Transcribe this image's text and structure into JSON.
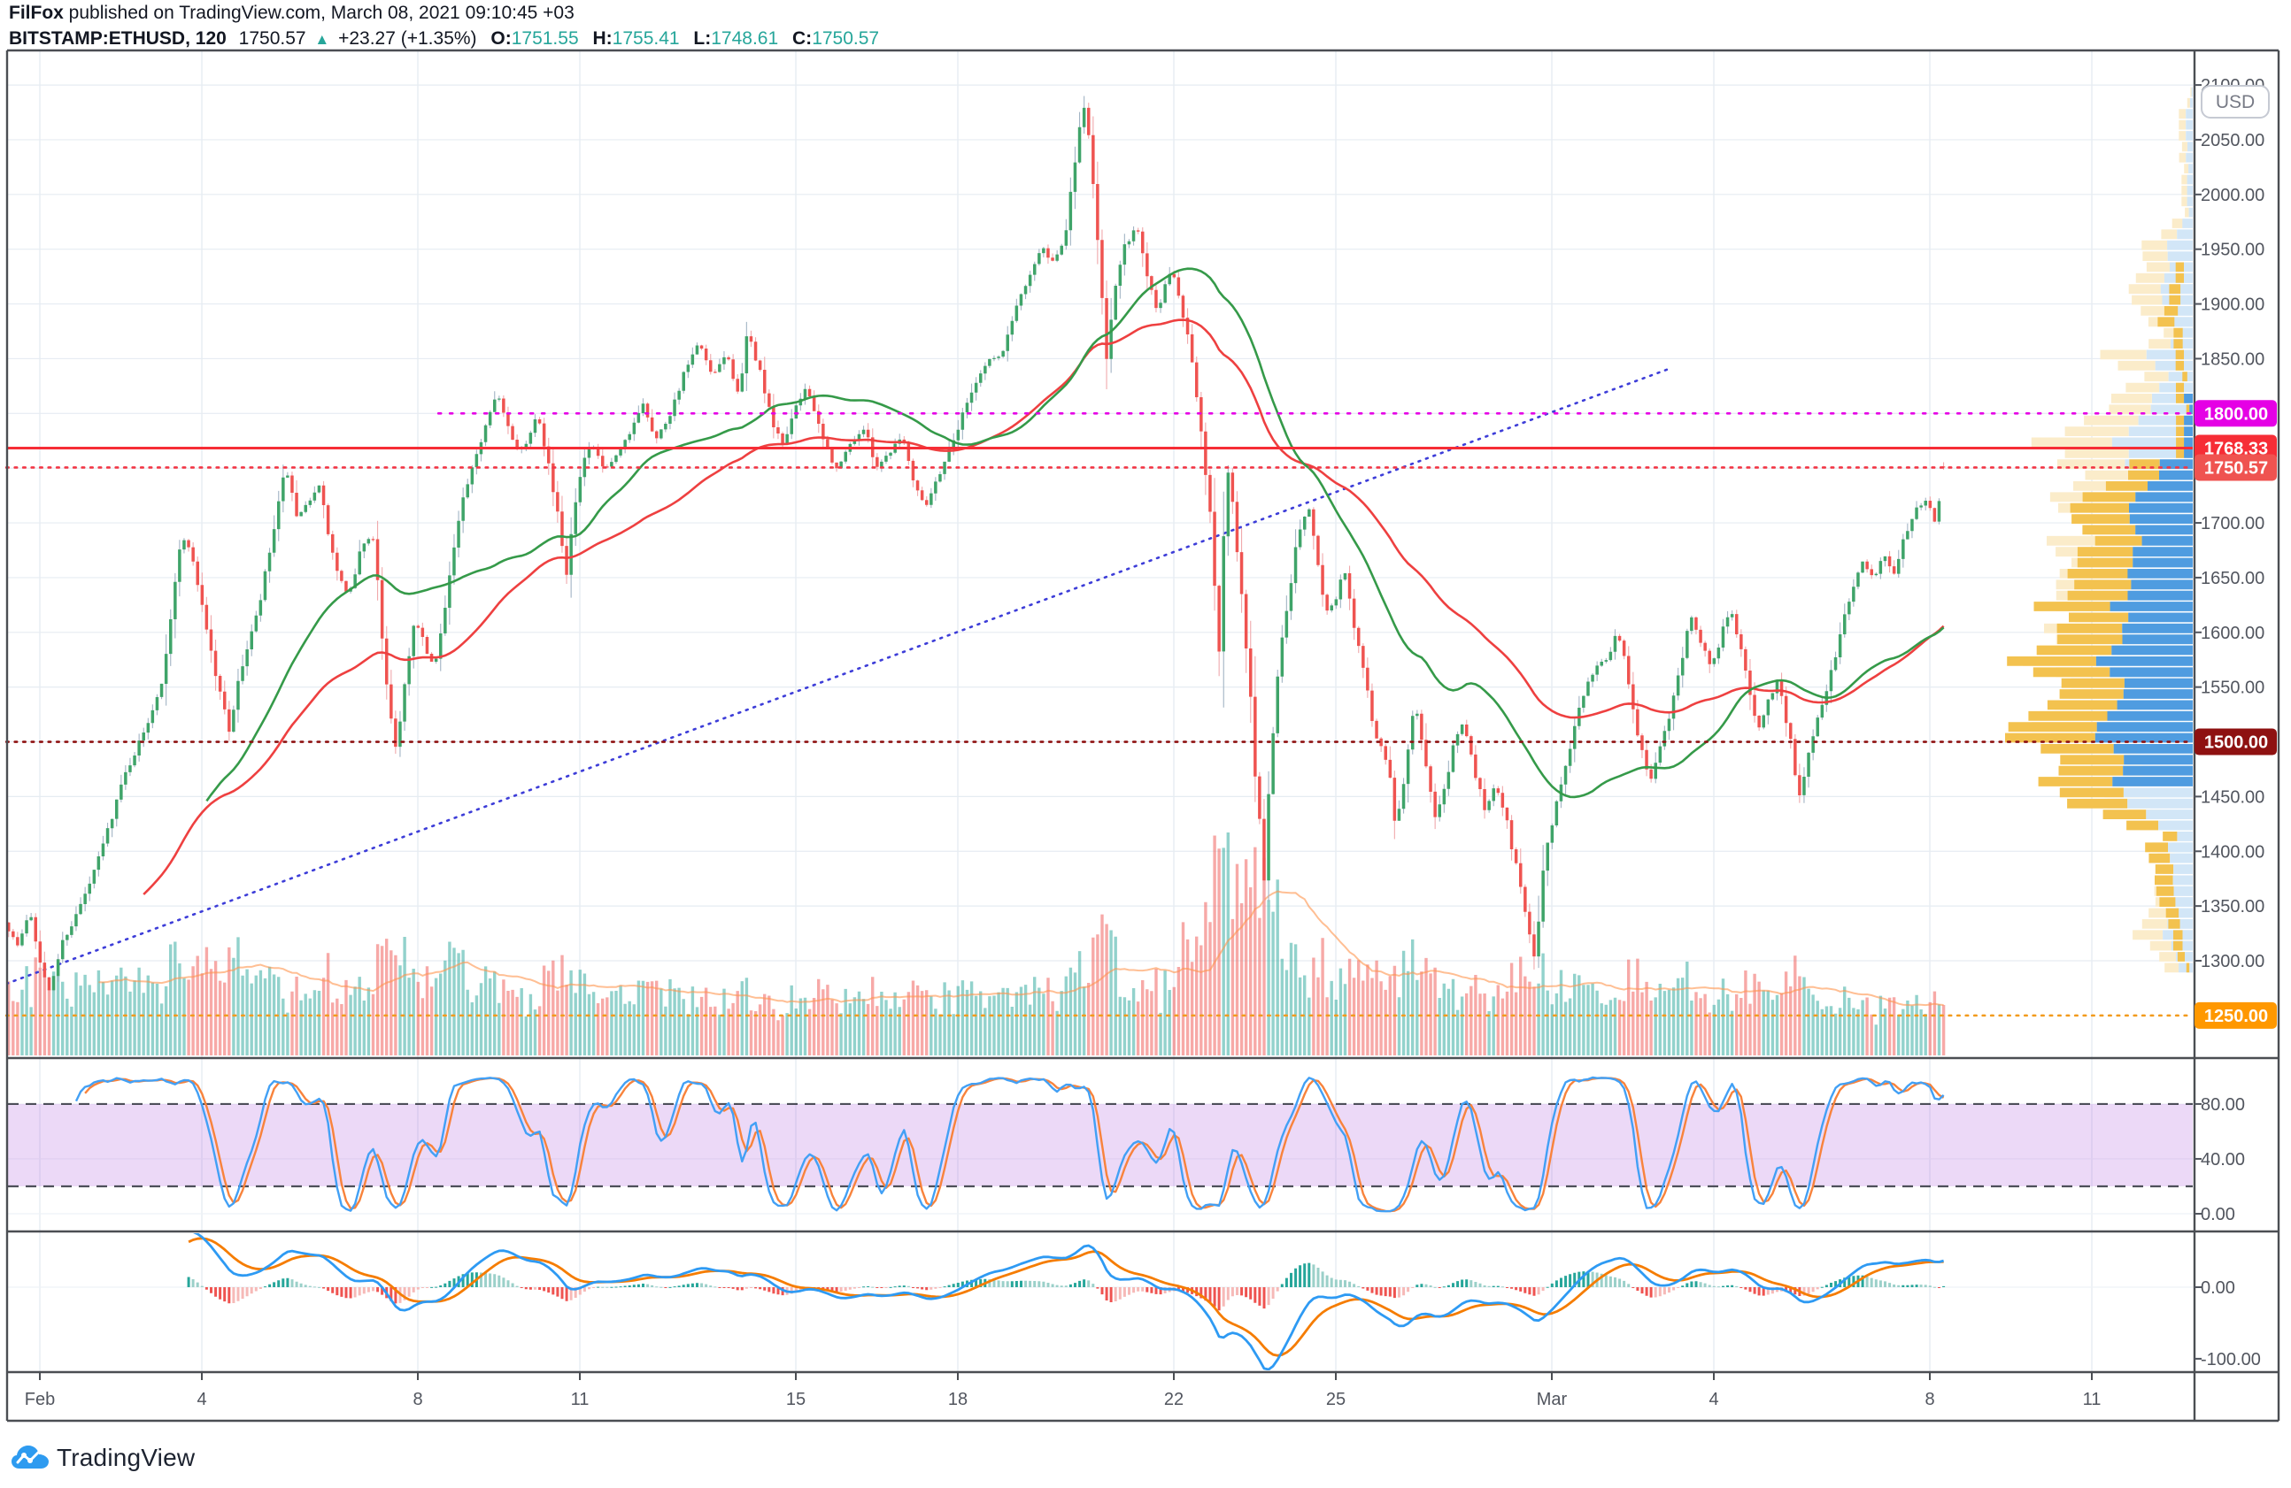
{
  "header": {
    "byline_author": "FilFox",
    "byline_rest": " published on TradingView.com, March 08, 2021 09:10:45 +03",
    "symbol": "BITSTAMP:ETHUSD, 120",
    "last_price": "1750.57",
    "change_icon": "▲",
    "change": "+23.27 (+1.35%)",
    "o_label": "O:",
    "o_value": "1751.55",
    "h_label": "H:",
    "h_value": "1755.41",
    "l_label": "L:",
    "l_value": "1748.61",
    "c_label": "C:",
    "c_value": "1750.57"
  },
  "footer": {
    "logo_text": "TradingView"
  },
  "axis": {
    "currency": "USD",
    "price_ticks": [
      2100,
      2050,
      2000,
      1950,
      1900,
      1850,
      1700,
      1650,
      1600,
      1550,
      1450,
      1400,
      1350,
      1300
    ],
    "stoch_ticks": [
      [
        80,
        "80.00"
      ],
      [
        40,
        "40.00"
      ],
      [
        0,
        "0.00"
      ]
    ],
    "macd_ticks": [
      [
        0,
        "0.00"
      ],
      [
        -100,
        "-100.00"
      ]
    ],
    "time_ticks": [
      [
        "Feb",
        0
      ],
      [
        "4",
        3
      ],
      [
        "8",
        7
      ],
      [
        "11",
        10
      ],
      [
        "15",
        14
      ],
      [
        "18",
        17
      ],
      [
        "22",
        21
      ],
      [
        "25",
        24
      ],
      [
        "Mar",
        28
      ],
      [
        "4",
        31
      ],
      [
        "8",
        35
      ],
      [
        "11",
        38
      ]
    ]
  },
  "levels": [
    {
      "price": 1800.0,
      "label": "1800.00",
      "line": "#e500e5",
      "badge": "#e500e5",
      "style": "dotted",
      "from_day": 7.38
    },
    {
      "price": 1768.33,
      "label": "1768.33",
      "line": "#f62d36",
      "badge": "#f62d36",
      "style": "solid",
      "from_day": -0.62
    },
    {
      "price": 1750.57,
      "label": "1750.57",
      "line": "#f23645",
      "badge": "#ef5350",
      "style": "dotted",
      "from_day": -0.62,
      "role": "last-price"
    },
    {
      "price": 1500.0,
      "label": "1500.00",
      "line": "#8e1111",
      "badge": "#8e1111",
      "style": "dotted",
      "from_day": -0.62
    },
    {
      "price": 1250.0,
      "label": "1250.00",
      "line": "#f29b1d",
      "badge": "#ff9800",
      "style": "dotted",
      "from_day": -0.62
    }
  ],
  "trendline": {
    "from_day": -0.62,
    "from_price": 1279,
    "to_day": 30.13,
    "to_price": 1840,
    "color": "#3d3dd8",
    "style": "dotted"
  },
  "chart_data": {
    "type": "candlestick",
    "exchange": "BITSTAMP",
    "ticker": "ETHUSD",
    "interval_minutes": 120,
    "visible_range_days": [
      "2021-01-31 09:00",
      "2021-03-08 09:00"
    ],
    "price_axis_range": [
      1215,
      2131
    ],
    "grid": true,
    "keyframes_day_price": [
      [
        -0.6,
        1335
      ],
      [
        -0.35,
        1312
      ],
      [
        -0.15,
        1348
      ],
      [
        0.0,
        1312
      ],
      [
        0.2,
        1268
      ],
      [
        0.45,
        1316
      ],
      [
        0.7,
        1340
      ],
      [
        1.0,
        1374
      ],
      [
        1.3,
        1420
      ],
      [
        1.6,
        1468
      ],
      [
        2.0,
        1512
      ],
      [
        2.3,
        1556
      ],
      [
        2.6,
        1668
      ],
      [
        2.75,
        1689
      ],
      [
        3.0,
        1638
      ],
      [
        3.3,
        1560
      ],
      [
        3.55,
        1512
      ],
      [
        3.8,
        1572
      ],
      [
        4.1,
        1622
      ],
      [
        4.45,
        1712
      ],
      [
        4.6,
        1752
      ],
      [
        4.8,
        1702
      ],
      [
        5.0,
        1718
      ],
      [
        5.2,
        1736
      ],
      [
        5.5,
        1662
      ],
      [
        5.75,
        1630
      ],
      [
        6.0,
        1679
      ],
      [
        6.2,
        1691
      ],
      [
        6.45,
        1562
      ],
      [
        6.62,
        1492
      ],
      [
        6.8,
        1552
      ],
      [
        7.0,
        1612
      ],
      [
        7.2,
        1582
      ],
      [
        7.35,
        1566
      ],
      [
        7.6,
        1644
      ],
      [
        7.85,
        1716
      ],
      [
        8.1,
        1756
      ],
      [
        8.35,
        1800
      ],
      [
        8.5,
        1822
      ],
      [
        8.65,
        1795
      ],
      [
        8.85,
        1768
      ],
      [
        9.05,
        1772
      ],
      [
        9.25,
        1803
      ],
      [
        9.45,
        1758
      ],
      [
        9.65,
        1700
      ],
      [
        9.8,
        1656
      ],
      [
        10.0,
        1742
      ],
      [
        10.25,
        1772
      ],
      [
        10.5,
        1748
      ],
      [
        10.75,
        1762
      ],
      [
        11.0,
        1784
      ],
      [
        11.2,
        1812
      ],
      [
        11.45,
        1776
      ],
      [
        11.7,
        1798
      ],
      [
        12.0,
        1840
      ],
      [
        12.25,
        1864
      ],
      [
        12.5,
        1832
      ],
      [
        12.75,
        1856
      ],
      [
        13.0,
        1815
      ],
      [
        13.15,
        1874
      ],
      [
        13.4,
        1835
      ],
      [
        13.6,
        1790
      ],
      [
        13.8,
        1772
      ],
      [
        14.0,
        1800
      ],
      [
        14.25,
        1826
      ],
      [
        14.5,
        1780
      ],
      [
        14.8,
        1748
      ],
      [
        15.05,
        1772
      ],
      [
        15.3,
        1786
      ],
      [
        15.55,
        1752
      ],
      [
        15.8,
        1766
      ],
      [
        16.0,
        1781
      ],
      [
        16.25,
        1735
      ],
      [
        16.45,
        1716
      ],
      [
        16.7,
        1745
      ],
      [
        17.0,
        1781
      ],
      [
        17.3,
        1822
      ],
      [
        17.6,
        1849
      ],
      [
        17.85,
        1852
      ],
      [
        18.1,
        1895
      ],
      [
        18.35,
        1925
      ],
      [
        18.6,
        1952
      ],
      [
        18.8,
        1937
      ],
      [
        19.0,
        1955
      ],
      [
        19.15,
        2005
      ],
      [
        19.35,
        2085
      ],
      [
        19.5,
        2040
      ],
      [
        19.65,
        1952
      ],
      [
        19.8,
        1855
      ],
      [
        19.95,
        1910
      ],
      [
        20.1,
        1948
      ],
      [
        20.35,
        1972
      ],
      [
        20.55,
        1928
      ],
      [
        20.75,
        1892
      ],
      [
        20.9,
        1922
      ],
      [
        21.0,
        1935
      ],
      [
        21.15,
        1905
      ],
      [
        21.35,
        1862
      ],
      [
        21.55,
        1778
      ],
      [
        21.75,
        1688
      ],
      [
        21.9,
        1565
      ],
      [
        22.0,
        1772
      ],
      [
        22.15,
        1705
      ],
      [
        22.3,
        1632
      ],
      [
        22.45,
        1540
      ],
      [
        22.6,
        1442
      ],
      [
        22.72,
        1375
      ],
      [
        22.85,
        1498
      ],
      [
        23.0,
        1578
      ],
      [
        23.2,
        1648
      ],
      [
        23.4,
        1700
      ],
      [
        23.55,
        1712
      ],
      [
        23.72,
        1662
      ],
      [
        23.85,
        1622
      ],
      [
        24.0,
        1624
      ],
      [
        24.2,
        1658
      ],
      [
        24.4,
        1602
      ],
      [
        24.6,
        1552
      ],
      [
        24.8,
        1502
      ],
      [
        25.0,
        1482
      ],
      [
        25.15,
        1422
      ],
      [
        25.3,
        1462
      ],
      [
        25.5,
        1540
      ],
      [
        25.7,
        1482
      ],
      [
        25.85,
        1432
      ],
      [
        26.0,
        1445
      ],
      [
        26.2,
        1490
      ],
      [
        26.4,
        1522
      ],
      [
        26.6,
        1472
      ],
      [
        26.8,
        1441
      ],
      [
        27.0,
        1461
      ],
      [
        27.2,
        1431
      ],
      [
        27.4,
        1381
      ],
      [
        27.6,
        1331
      ],
      [
        27.72,
        1302
      ],
      [
        27.85,
        1372
      ],
      [
        28.0,
        1416
      ],
      [
        28.3,
        1481
      ],
      [
        28.6,
        1541
      ],
      [
        28.85,
        1570
      ],
      [
        29.05,
        1575
      ],
      [
        29.25,
        1601
      ],
      [
        29.45,
        1561
      ],
      [
        29.65,
        1502
      ],
      [
        29.85,
        1462
      ],
      [
        30.0,
        1486
      ],
      [
        30.2,
        1521
      ],
      [
        30.4,
        1562
      ],
      [
        30.6,
        1618
      ],
      [
        30.8,
        1592
      ],
      [
        31.0,
        1567
      ],
      [
        31.2,
        1601
      ],
      [
        31.35,
        1622
      ],
      [
        31.55,
        1582
      ],
      [
        31.75,
        1532
      ],
      [
        31.9,
        1512
      ],
      [
        32.05,
        1539
      ],
      [
        32.25,
        1558
      ],
      [
        32.45,
        1502
      ],
      [
        32.62,
        1452
      ],
      [
        32.8,
        1492
      ],
      [
        33.0,
        1527
      ],
      [
        33.2,
        1562
      ],
      [
        33.4,
        1601
      ],
      [
        33.6,
        1641
      ],
      [
        33.8,
        1666
      ],
      [
        34.0,
        1648
      ],
      [
        34.2,
        1672
      ],
      [
        34.4,
        1652
      ],
      [
        34.6,
        1692
      ],
      [
        34.8,
        1712
      ],
      [
        35.0,
        1722
      ],
      [
        35.12,
        1702
      ],
      [
        35.25,
        1728
      ],
      [
        35.33,
        1750.57
      ]
    ],
    "wick_overrides": [
      [
        19.35,
        "high",
        2090
      ],
      [
        21.9,
        "low",
        1560
      ],
      [
        22.72,
        "low",
        1300
      ],
      [
        27.72,
        "low",
        1292
      ]
    ],
    "last_candle_ohlc": [
      1751.55,
      1755.41,
      1748.61,
      1750.57
    ],
    "day_volume_weights": [
      0.55,
      0.5,
      0.55,
      0.6,
      0.5,
      0.45,
      0.5,
      0.6,
      0.5,
      0.45,
      0.45,
      0.5,
      0.4,
      0.35,
      0.45,
      0.4,
      0.4,
      0.45,
      0.5,
      0.55,
      0.45,
      0.95,
      1.0,
      0.6,
      0.55,
      0.6,
      0.35,
      0.5,
      0.45,
      0.45,
      0.4,
      0.4,
      0.45,
      0.35,
      0.3,
      0.35
    ],
    "indicators": {
      "ma_fast": {
        "type": "sma",
        "length": 45,
        "color": "#359a49"
      },
      "ma_slow": {
        "type": "ema",
        "length": 75,
        "color": "#ee4040"
      },
      "stochastic": {
        "k": 14,
        "smooth": 3,
        "d": 3,
        "overbought": 80,
        "oversold": 20
      },
      "macd": {
        "fast": 12,
        "slow": 26,
        "signal": 9
      },
      "volume_profile": {
        "bucket": 10,
        "recent_from_day": 21,
        "value_area": [
          1455,
          1818
        ]
      }
    }
  },
  "colors": {
    "up": "#3fa469",
    "down": "#ef5350",
    "wick_up": "#a2b4c4",
    "wick_down": "#f0a9ac",
    "vol_up": "rgba(38,166,154,0.5)",
    "vol_down": "rgba(239,83,80,0.5)",
    "vol_ma": "rgba(255,148,77,0.6)",
    "stoch_k": "#42a0f5",
    "stoch_d": "#f8833c",
    "stoch_band": "rgba(168,82,217,0.22)",
    "stoch_dash": "#4d4f5a",
    "macd_line": "#2e9af3",
    "macd_signal": "#f57c00",
    "hist_up": "#26a69a",
    "hist_up_weak": "#9bd0c9",
    "hist_dn": "#ef5350",
    "hist_dn_weak": "#f6b9b7",
    "vp_gold": "#f3c24f",
    "vp_blue": "#4f9ce0",
    "vp_cream": "#fbecca",
    "vp_pale": "#d2e6f7",
    "grid": "#e6ecf2",
    "border": "#4b4e53",
    "axis_text": "#51555e",
    "logo_blue": "#2e9bf0"
  }
}
